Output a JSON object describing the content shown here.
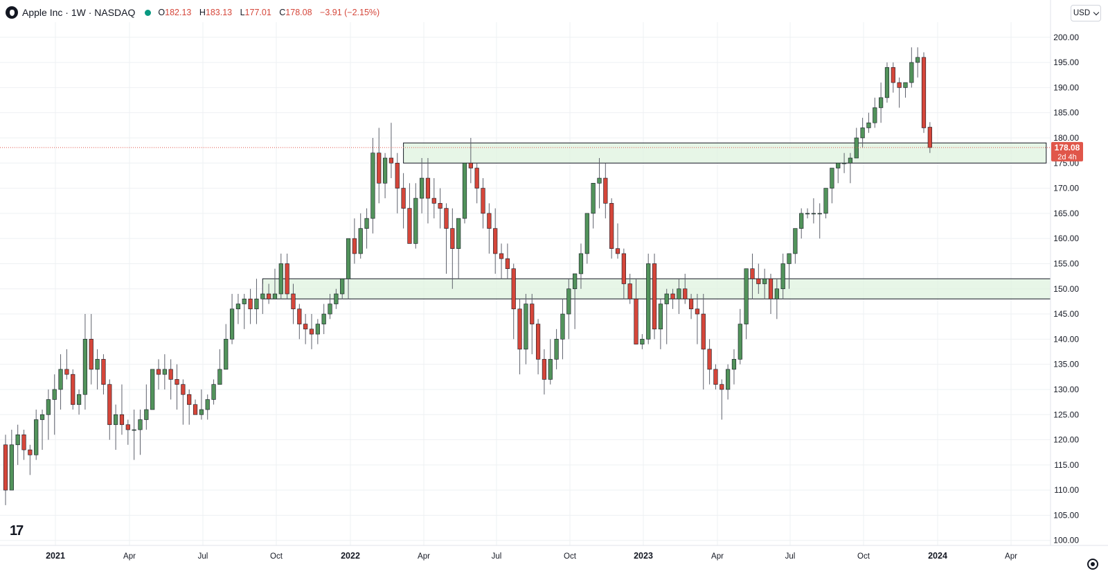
{
  "header": {
    "title": "Apple Inc · 1W · NASDAQ",
    "open_label": "O",
    "open": "182.13",
    "high_label": "H",
    "high": "183.13",
    "low_label": "L",
    "low": "177.01",
    "close_label": "C",
    "close": "178.08",
    "change": "−3.91 (−2.15%)"
  },
  "currency": "USD",
  "price_tag": {
    "price": "178.08",
    "countdown": "2d 4h"
  },
  "branding": "17",
  "colors": {
    "up": "#52935b",
    "down": "#d5463a",
    "zone_fill": "#dff3df",
    "zone_stroke": "#131722",
    "price_line": "#e0564a",
    "grid": "#eef0f3"
  },
  "chart_data": {
    "type": "candlestick",
    "symbol": "AAPL",
    "timeframe": "1W",
    "ylim": [
      99,
      203
    ],
    "y_ticks": [
      100,
      105,
      110,
      115,
      120,
      125,
      130,
      135,
      140,
      145,
      150,
      155,
      160,
      165,
      170,
      175,
      180,
      185,
      190,
      195,
      200
    ],
    "x_ticks": [
      "2021",
      "Apr",
      "Jul",
      "Oct",
      "2022",
      "Apr",
      "Jul",
      "Oct",
      "2023",
      "Apr",
      "Jul",
      "Oct",
      "2024",
      "Apr"
    ],
    "candles": [
      [
        119,
        121,
        107,
        110
      ],
      [
        110,
        122,
        110,
        119
      ],
      [
        119,
        123,
        115,
        121
      ],
      [
        121,
        122,
        116,
        118
      ],
      [
        118,
        119,
        113,
        117
      ],
      [
        117,
        126,
        116,
        124
      ],
      [
        124,
        126,
        118,
        125
      ],
      [
        125,
        130,
        120,
        128
      ],
      [
        128,
        133,
        121,
        130
      ],
      [
        130,
        137,
        126,
        134
      ],
      [
        134,
        138,
        132,
        133
      ],
      [
        133,
        134,
        126,
        127
      ],
      [
        127,
        130,
        125,
        129
      ],
      [
        129,
        145,
        126,
        140
      ],
      [
        140,
        145,
        131,
        134
      ],
      [
        134,
        138,
        130,
        136
      ],
      [
        136,
        137,
        129,
        131
      ],
      [
        131,
        132,
        120,
        123
      ],
      [
        123,
        127,
        118,
        125
      ],
      [
        125,
        131,
        121,
        123
      ],
      [
        123,
        124,
        119,
        122
      ],
      [
        122,
        126,
        116,
        122
      ],
      [
        122,
        126,
        117,
        124
      ],
      [
        124,
        131,
        122,
        126
      ],
      [
        126,
        134,
        126,
        134
      ],
      [
        134,
        136,
        130,
        133
      ],
      [
        133,
        137,
        130,
        134
      ],
      [
        134,
        136,
        128,
        132
      ],
      [
        132,
        135,
        126,
        131
      ],
      [
        131,
        132,
        123,
        129
      ],
      [
        129,
        130,
        123,
        127
      ],
      [
        127,
        128,
        125,
        125
      ],
      [
        125,
        130,
        124,
        126
      ],
      [
        126,
        129,
        124,
        128
      ],
      [
        128,
        132,
        127,
        131
      ],
      [
        131,
        138,
        131,
        134
      ],
      [
        134,
        143,
        134,
        140
      ],
      [
        140,
        149,
        139,
        146
      ],
      [
        146,
        149,
        143,
        147
      ],
      [
        147,
        149,
        142,
        148
      ],
      [
        148,
        150,
        143,
        146
      ],
      [
        146,
        152,
        143,
        148
      ],
      [
        148,
        151,
        145,
        149
      ],
      [
        149,
        151,
        147,
        148
      ],
      [
        148,
        154,
        148,
        149
      ],
      [
        149,
        157,
        148,
        155
      ],
      [
        155,
        157,
        148,
        149
      ],
      [
        149,
        151,
        143,
        146
      ],
      [
        146,
        147,
        140,
        143
      ],
      [
        143,
        145,
        139,
        142
      ],
      [
        142,
        145,
        138,
        141
      ],
      [
        141,
        144,
        139,
        143
      ],
      [
        143,
        147,
        141,
        145
      ],
      [
        145,
        149,
        144,
        147
      ],
      [
        147,
        150,
        146,
        149
      ],
      [
        149,
        152,
        148,
        152
      ],
      [
        152,
        159,
        148,
        160
      ],
      [
        160,
        164,
        155,
        157
      ],
      [
        157,
        165,
        156,
        162
      ],
      [
        162,
        166,
        158,
        164
      ],
      [
        164,
        180,
        161,
        177
      ],
      [
        177,
        182,
        167,
        171
      ],
      [
        171,
        177,
        168,
        176
      ],
      [
        176,
        183,
        172,
        175
      ],
      [
        175,
        177,
        165,
        170
      ],
      [
        170,
        173,
        162,
        166
      ],
      [
        166,
        171,
        160,
        159
      ],
      [
        159,
        171,
        158,
        168
      ],
      [
        168,
        176,
        165,
        172
      ],
      [
        172,
        176,
        163,
        168
      ],
      [
        168,
        172,
        164,
        167
      ],
      [
        167,
        170,
        162,
        166
      ],
      [
        166,
        167,
        153,
        162
      ],
      [
        162,
        166,
        150,
        158
      ],
      [
        158,
        163,
        152,
        164
      ],
      [
        164,
        175,
        163,
        175
      ],
      [
        175,
        180,
        171,
        174
      ],
      [
        174,
        175,
        167,
        170
      ],
      [
        170,
        172,
        162,
        165
      ],
      [
        165,
        167,
        157,
        162
      ],
      [
        162,
        166,
        153,
        157
      ],
      [
        157,
        159,
        152,
        156
      ],
      [
        156,
        159,
        152,
        154
      ],
      [
        154,
        155,
        140,
        146
      ],
      [
        146,
        148,
        133,
        138
      ],
      [
        138,
        149,
        135,
        147
      ],
      [
        147,
        149,
        137,
        143
      ],
      [
        143,
        144,
        133,
        136
      ],
      [
        136,
        138,
        129,
        132
      ],
      [
        132,
        140,
        131,
        136
      ],
      [
        136,
        142,
        134,
        140
      ],
      [
        140,
        148,
        136,
        145
      ],
      [
        145,
        152,
        140,
        150
      ],
      [
        150,
        152,
        142,
        153
      ],
      [
        153,
        159,
        150,
        157
      ],
      [
        157,
        164,
        155,
        165
      ],
      [
        165,
        171,
        162,
        171
      ],
      [
        171,
        176,
        166,
        172
      ],
      [
        172,
        175,
        164,
        167
      ],
      [
        167,
        168,
        156,
        158
      ],
      [
        158,
        163,
        156,
        157
      ],
      [
        157,
        158,
        148,
        151
      ],
      [
        151,
        153,
        147,
        148
      ],
      [
        148,
        152,
        139,
        139
      ],
      [
        139,
        141,
        138,
        140
      ],
      [
        140,
        157,
        139,
        155
      ],
      [
        155,
        157,
        140,
        142
      ],
      [
        142,
        148,
        138,
        147
      ],
      [
        147,
        150,
        139,
        149
      ],
      [
        149,
        150,
        146,
        148
      ],
      [
        148,
        152,
        145,
        150
      ],
      [
        150,
        153,
        147,
        148
      ],
      [
        148,
        149,
        144,
        146
      ],
      [
        146,
        149,
        139,
        145
      ],
      [
        145,
        149,
        130,
        138
      ],
      [
        138,
        140,
        131,
        134
      ],
      [
        134,
        135,
        130,
        131
      ],
      [
        131,
        132,
        124,
        130
      ],
      [
        130,
        135,
        128,
        134
      ],
      [
        134,
        138,
        131,
        136
      ],
      [
        136,
        146,
        135,
        143
      ],
      [
        143,
        154,
        140,
        154
      ],
      [
        154,
        157,
        148,
        152
      ],
      [
        152,
        155,
        149,
        151
      ],
      [
        151,
        154,
        148,
        152
      ],
      [
        152,
        153,
        145,
        148
      ],
      [
        148,
        152,
        144,
        150
      ],
      [
        150,
        157,
        148,
        155
      ],
      [
        155,
        157,
        150,
        157
      ],
      [
        157,
        161,
        155,
        162
      ],
      [
        162,
        166,
        160,
        165
      ],
      [
        165,
        166,
        164,
        165
      ],
      [
        165,
        168,
        163,
        165
      ],
      [
        165,
        167,
        160,
        165
      ],
      [
        165,
        170,
        164,
        170
      ],
      [
        170,
        174,
        167,
        174
      ],
      [
        174,
        175,
        171,
        175
      ],
      [
        175,
        177,
        173,
        175
      ],
      [
        175,
        177,
        171,
        176
      ],
      [
        176,
        182,
        177,
        180
      ],
      [
        180,
        184,
        178,
        182
      ],
      [
        182,
        185,
        181,
        183
      ],
      [
        183,
        188,
        182,
        186
      ],
      [
        186,
        191,
        183,
        188
      ],
      [
        188,
        195,
        187,
        194
      ],
      [
        194,
        195,
        189,
        191
      ],
      [
        191,
        192,
        186,
        190
      ],
      [
        190,
        191,
        188,
        191
      ],
      [
        191,
        198,
        190,
        195
      ],
      [
        195,
        198,
        192,
        196
      ],
      [
        196,
        197,
        181,
        182
      ],
      [
        182.13,
        183.13,
        177.01,
        178.08
      ]
    ],
    "zones": [
      {
        "from_week": 65,
        "to_week": 170,
        "low": 175,
        "high": 179
      },
      {
        "from_week": 42,
        "to_week": 173,
        "low": 148,
        "high": 152
      }
    ],
    "last_price": 178.08
  }
}
